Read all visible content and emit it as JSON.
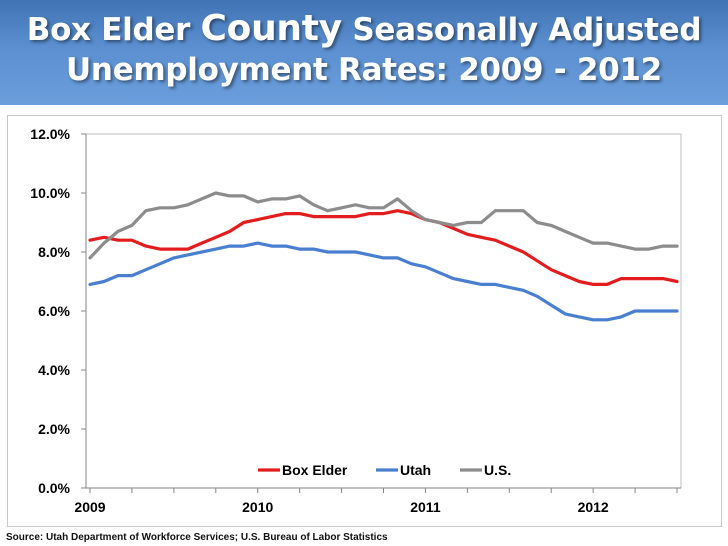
{
  "title": {
    "line1_a": "Box Elder ",
    "line1_b": "County",
    "line1_c": " Seasonally Adjusted",
    "line2": "Unemployment Rates: 2009 - 2012"
  },
  "source": "Source: Utah Department of Workforce Services; U.S. Bureau of Labor Statistics",
  "chart_data": {
    "type": "line",
    "title": "Box Elder County Seasonally Adjusted Unemployment Rates: 2009 - 2012",
    "xlabel": "",
    "ylabel": "",
    "ylim": [
      0,
      12
    ],
    "y_ticks": [
      "0.0%",
      "2.0%",
      "4.0%",
      "6.0%",
      "8.0%",
      "10.0%",
      "12.0%"
    ],
    "x_tick_labels": [
      "2009",
      "2010",
      "2011",
      "2012"
    ],
    "months": 43,
    "legend_position": "bottom-center",
    "grid": false,
    "series": [
      {
        "name": "Box Elder",
        "color": "#e31d1d",
        "values": [
          8.4,
          8.5,
          8.4,
          8.4,
          8.2,
          8.1,
          8.1,
          8.1,
          8.3,
          8.5,
          8.7,
          9.0,
          9.1,
          9.2,
          9.3,
          9.3,
          9.2,
          9.2,
          9.2,
          9.2,
          9.3,
          9.3,
          9.4,
          9.3,
          9.1,
          9.0,
          8.8,
          8.6,
          8.5,
          8.4,
          8.2,
          8.0,
          7.7,
          7.4,
          7.2,
          7.0,
          6.9,
          6.9,
          7.1,
          7.1,
          7.1,
          7.1,
          7.0
        ]
      },
      {
        "name": "Utah",
        "color": "#4a7fd0",
        "values": [
          6.9,
          7.0,
          7.2,
          7.2,
          7.4,
          7.6,
          7.8,
          7.9,
          8.0,
          8.1,
          8.2,
          8.2,
          8.3,
          8.2,
          8.2,
          8.1,
          8.1,
          8.0,
          8.0,
          8.0,
          7.9,
          7.8,
          7.8,
          7.6,
          7.5,
          7.3,
          7.1,
          7.0,
          6.9,
          6.9,
          6.8,
          6.7,
          6.5,
          6.2,
          5.9,
          5.8,
          5.7,
          5.7,
          5.8,
          6.0,
          6.0,
          6.0,
          6.0
        ]
      },
      {
        "name": "U.S.",
        "color": "#8c8c8c",
        "values": [
          7.8,
          8.3,
          8.7,
          8.9,
          9.4,
          9.5,
          9.5,
          9.6,
          9.8,
          10.0,
          9.9,
          9.9,
          9.7,
          9.8,
          9.8,
          9.9,
          9.6,
          9.4,
          9.5,
          9.6,
          9.5,
          9.5,
          9.8,
          9.4,
          9.1,
          9.0,
          8.9,
          9.0,
          9.0,
          9.4,
          9.4,
          9.4,
          9.0,
          8.9,
          8.7,
          8.5,
          8.3,
          8.3,
          8.2,
          8.1,
          8.1,
          8.2,
          8.2
        ]
      }
    ]
  }
}
